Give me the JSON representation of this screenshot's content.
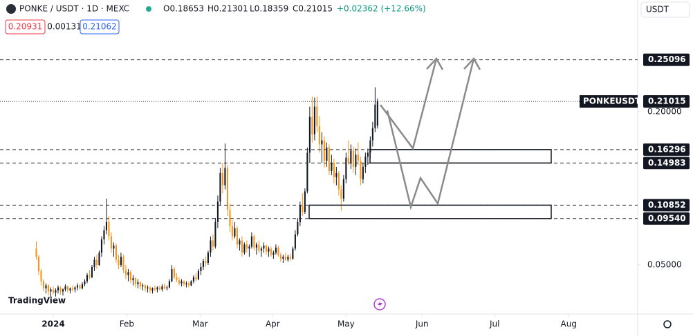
{
  "header": {
    "symbol": "PONKE / USDT · 1D · MEXC",
    "open": "O0.18653",
    "high": "H0.21301",
    "low": "L0.18359",
    "close": "C0.21015",
    "change": "+0.02362 (+12.66%)",
    "bid": "0.20931",
    "spread": "0.00131",
    "ask": "0.21062",
    "currency": "USDT",
    "watermark": "TradingView"
  },
  "chart_data": {
    "type": "candlestick",
    "up_color": "#131722",
    "down_color": "#f7931a",
    "ylim": [
      0.002,
      0.3095
    ],
    "yticks": [
      {
        "value": 0.05,
        "label": "0.05000"
      },
      {
        "value": 0.2,
        "label": "0.20000"
      }
    ],
    "xlim": [
      -15,
      248.5
    ],
    "xticks": [
      {
        "value": 7,
        "label": "2024"
      },
      {
        "value": 37.4,
        "label": "Feb"
      },
      {
        "value": 67.7,
        "label": "Mar"
      },
      {
        "value": 97.7,
        "label": "Apr"
      },
      {
        "value": 128,
        "label": "May"
      },
      {
        "value": 159.4,
        "label": "Jun"
      },
      {
        "value": 189.4,
        "label": "Jul"
      },
      {
        "value": 220,
        "label": "Aug"
      }
    ],
    "grid": false,
    "levels": [
      0.25096,
      0.16296,
      0.14983,
      0.10852,
      {
        "value": 0.0954,
        "label": "0.09540"
      }
    ],
    "last_symbol": "PONKEUSDT",
    "last_price": 0.21015,
    "ohlc": [
      [
        0.066,
        0.073,
        0.055,
        0.058
      ],
      [
        0.058,
        0.06,
        0.04,
        0.044
      ],
      [
        0.044,
        0.046,
        0.03,
        0.034
      ],
      [
        0.034,
        0.036,
        0.024,
        0.027
      ],
      [
        0.027,
        0.032,
        0.022,
        0.03
      ],
      [
        0.03,
        0.031,
        0.02,
        0.024
      ],
      [
        0.024,
        0.028,
        0.018,
        0.026
      ],
      [
        0.026,
        0.029,
        0.021,
        0.023
      ],
      [
        0.023,
        0.027,
        0.019,
        0.025
      ],
      [
        0.025,
        0.03,
        0.022,
        0.028
      ],
      [
        0.028,
        0.029,
        0.021,
        0.024
      ],
      [
        0.024,
        0.027,
        0.02,
        0.026
      ],
      [
        0.026,
        0.031,
        0.024,
        0.029
      ],
      [
        0.029,
        0.03,
        0.023,
        0.025
      ],
      [
        0.025,
        0.028,
        0.022,
        0.027
      ],
      [
        0.027,
        0.03,
        0.024,
        0.026
      ],
      [
        0.026,
        0.029,
        0.023,
        0.028
      ],
      [
        0.028,
        0.032,
        0.025,
        0.03
      ],
      [
        0.03,
        0.031,
        0.026,
        0.027
      ],
      [
        0.027,
        0.033,
        0.026,
        0.031
      ],
      [
        0.031,
        0.036,
        0.029,
        0.034
      ],
      [
        0.034,
        0.042,
        0.032,
        0.04
      ],
      [
        0.04,
        0.045,
        0.036,
        0.038
      ],
      [
        0.038,
        0.05,
        0.037,
        0.048
      ],
      [
        0.048,
        0.058,
        0.044,
        0.055
      ],
      [
        0.055,
        0.06,
        0.046,
        0.05
      ],
      [
        0.05,
        0.064,
        0.049,
        0.062
      ],
      [
        0.062,
        0.078,
        0.058,
        0.075
      ],
      [
        0.075,
        0.088,
        0.07,
        0.084
      ],
      [
        0.084,
        0.115,
        0.08,
        0.092
      ],
      [
        0.092,
        0.098,
        0.074,
        0.078
      ],
      [
        0.078,
        0.082,
        0.062,
        0.066
      ],
      [
        0.066,
        0.072,
        0.058,
        0.069
      ],
      [
        0.069,
        0.071,
        0.052,
        0.055
      ],
      [
        0.055,
        0.06,
        0.046,
        0.05
      ],
      [
        0.05,
        0.062,
        0.048,
        0.058
      ],
      [
        0.058,
        0.06,
        0.042,
        0.045
      ],
      [
        0.045,
        0.05,
        0.036,
        0.04
      ],
      [
        0.04,
        0.046,
        0.034,
        0.043
      ],
      [
        0.043,
        0.045,
        0.032,
        0.035
      ],
      [
        0.035,
        0.04,
        0.03,
        0.037
      ],
      [
        0.037,
        0.038,
        0.028,
        0.031
      ],
      [
        0.031,
        0.036,
        0.027,
        0.033
      ],
      [
        0.033,
        0.034,
        0.026,
        0.029
      ],
      [
        0.029,
        0.032,
        0.025,
        0.03
      ],
      [
        0.03,
        0.031,
        0.024,
        0.027
      ],
      [
        0.027,
        0.03,
        0.023,
        0.028
      ],
      [
        0.028,
        0.029,
        0.022,
        0.025
      ],
      [
        0.025,
        0.028,
        0.022,
        0.027
      ],
      [
        0.027,
        0.03,
        0.024,
        0.026
      ],
      [
        0.026,
        0.029,
        0.023,
        0.028
      ],
      [
        0.028,
        0.03,
        0.025,
        0.026
      ],
      [
        0.026,
        0.031,
        0.024,
        0.029
      ],
      [
        0.029,
        0.032,
        0.026,
        0.027
      ],
      [
        0.027,
        0.03,
        0.025,
        0.028
      ],
      [
        0.028,
        0.036,
        0.027,
        0.034
      ],
      [
        0.034,
        0.05,
        0.033,
        0.046
      ],
      [
        0.046,
        0.048,
        0.036,
        0.038
      ],
      [
        0.038,
        0.042,
        0.033,
        0.035
      ],
      [
        0.035,
        0.038,
        0.03,
        0.032
      ],
      [
        0.032,
        0.036,
        0.029,
        0.034
      ],
      [
        0.034,
        0.035,
        0.029,
        0.031
      ],
      [
        0.031,
        0.034,
        0.028,
        0.032
      ],
      [
        0.032,
        0.034,
        0.028,
        0.03
      ],
      [
        0.03,
        0.035,
        0.029,
        0.034
      ],
      [
        0.034,
        0.04,
        0.032,
        0.038
      ],
      [
        0.038,
        0.042,
        0.034,
        0.036
      ],
      [
        0.036,
        0.046,
        0.035,
        0.044
      ],
      [
        0.044,
        0.052,
        0.04,
        0.048
      ],
      [
        0.048,
        0.056,
        0.045,
        0.054
      ],
      [
        0.054,
        0.058,
        0.048,
        0.052
      ],
      [
        0.052,
        0.064,
        0.05,
        0.062
      ],
      [
        0.062,
        0.078,
        0.058,
        0.074
      ],
      [
        0.074,
        0.08,
        0.064,
        0.068
      ],
      [
        0.068,
        0.096,
        0.066,
        0.092
      ],
      [
        0.092,
        0.118,
        0.086,
        0.112
      ],
      [
        0.112,
        0.145,
        0.108,
        0.14
      ],
      [
        0.14,
        0.15,
        0.12,
        0.128
      ],
      [
        0.128,
        0.169,
        0.124,
        0.145
      ],
      [
        0.145,
        0.148,
        0.098,
        0.104
      ],
      [
        0.104,
        0.11,
        0.082,
        0.088
      ],
      [
        0.088,
        0.094,
        0.074,
        0.078
      ],
      [
        0.078,
        0.092,
        0.076,
        0.086
      ],
      [
        0.086,
        0.088,
        0.066,
        0.07
      ],
      [
        0.07,
        0.076,
        0.064,
        0.074
      ],
      [
        0.074,
        0.078,
        0.058,
        0.062
      ],
      [
        0.062,
        0.072,
        0.06,
        0.07
      ],
      [
        0.07,
        0.074,
        0.062,
        0.066
      ],
      [
        0.066,
        0.07,
        0.058,
        0.068
      ],
      [
        0.068,
        0.082,
        0.066,
        0.078
      ],
      [
        0.078,
        0.08,
        0.064,
        0.067
      ],
      [
        0.067,
        0.072,
        0.06,
        0.07
      ],
      [
        0.07,
        0.074,
        0.062,
        0.064
      ],
      [
        0.064,
        0.068,
        0.058,
        0.066
      ],
      [
        0.066,
        0.072,
        0.062,
        0.069
      ],
      [
        0.069,
        0.07,
        0.06,
        0.063
      ],
      [
        0.063,
        0.068,
        0.058,
        0.066
      ],
      [
        0.066,
        0.068,
        0.058,
        0.06
      ],
      [
        0.06,
        0.064,
        0.056,
        0.062
      ],
      [
        0.062,
        0.07,
        0.06,
        0.067
      ],
      [
        0.067,
        0.069,
        0.058,
        0.06
      ],
      [
        0.06,
        0.062,
        0.053,
        0.056
      ],
      [
        0.056,
        0.06,
        0.052,
        0.058
      ],
      [
        0.058,
        0.062,
        0.054,
        0.055
      ],
      [
        0.055,
        0.06,
        0.053,
        0.058
      ],
      [
        0.058,
        0.061,
        0.054,
        0.056
      ],
      [
        0.056,
        0.068,
        0.055,
        0.066
      ],
      [
        0.066,
        0.084,
        0.064,
        0.08
      ],
      [
        0.08,
        0.096,
        0.078,
        0.092
      ],
      [
        0.092,
        0.112,
        0.088,
        0.108
      ],
      [
        0.108,
        0.12,
        0.098,
        0.102
      ],
      [
        0.102,
        0.125,
        0.1,
        0.122
      ],
      [
        0.122,
        0.165,
        0.12,
        0.16
      ],
      [
        0.16,
        0.205,
        0.15,
        0.195
      ],
      [
        0.195,
        0.215,
        0.17,
        0.178
      ],
      [
        0.178,
        0.214,
        0.172,
        0.205
      ],
      [
        0.205,
        0.215,
        0.18,
        0.186
      ],
      [
        0.186,
        0.196,
        0.16,
        0.168
      ],
      [
        0.168,
        0.18,
        0.15,
        0.172
      ],
      [
        0.172,
        0.176,
        0.145,
        0.152
      ],
      [
        0.152,
        0.17,
        0.146,
        0.165
      ],
      [
        0.165,
        0.168,
        0.138,
        0.142
      ],
      [
        0.142,
        0.158,
        0.138,
        0.15
      ],
      [
        0.15,
        0.154,
        0.13,
        0.136
      ],
      [
        0.136,
        0.146,
        0.128,
        0.14
      ],
      [
        0.14,
        0.142,
        0.118,
        0.124
      ],
      [
        0.124,
        0.128,
        0.103,
        0.115
      ],
      [
        0.115,
        0.138,
        0.112,
        0.134
      ],
      [
        0.134,
        0.16,
        0.13,
        0.155
      ],
      [
        0.155,
        0.172,
        0.148,
        0.15
      ],
      [
        0.15,
        0.168,
        0.144,
        0.162
      ],
      [
        0.162,
        0.166,
        0.14,
        0.146
      ],
      [
        0.146,
        0.164,
        0.138,
        0.158
      ],
      [
        0.158,
        0.17,
        0.148,
        0.152
      ],
      [
        0.152,
        0.156,
        0.128,
        0.134
      ],
      [
        0.134,
        0.15,
        0.13,
        0.146
      ],
      [
        0.146,
        0.16,
        0.14,
        0.156
      ],
      [
        0.156,
        0.164,
        0.148,
        0.16
      ],
      [
        0.16,
        0.176,
        0.154,
        0.172
      ],
      [
        0.172,
        0.19,
        0.166,
        0.184
      ],
      [
        0.184,
        0.224,
        0.18,
        0.207
      ],
      [
        0.18653,
        0.21301,
        0.18359,
        0.21015
      ]
    ]
  }
}
